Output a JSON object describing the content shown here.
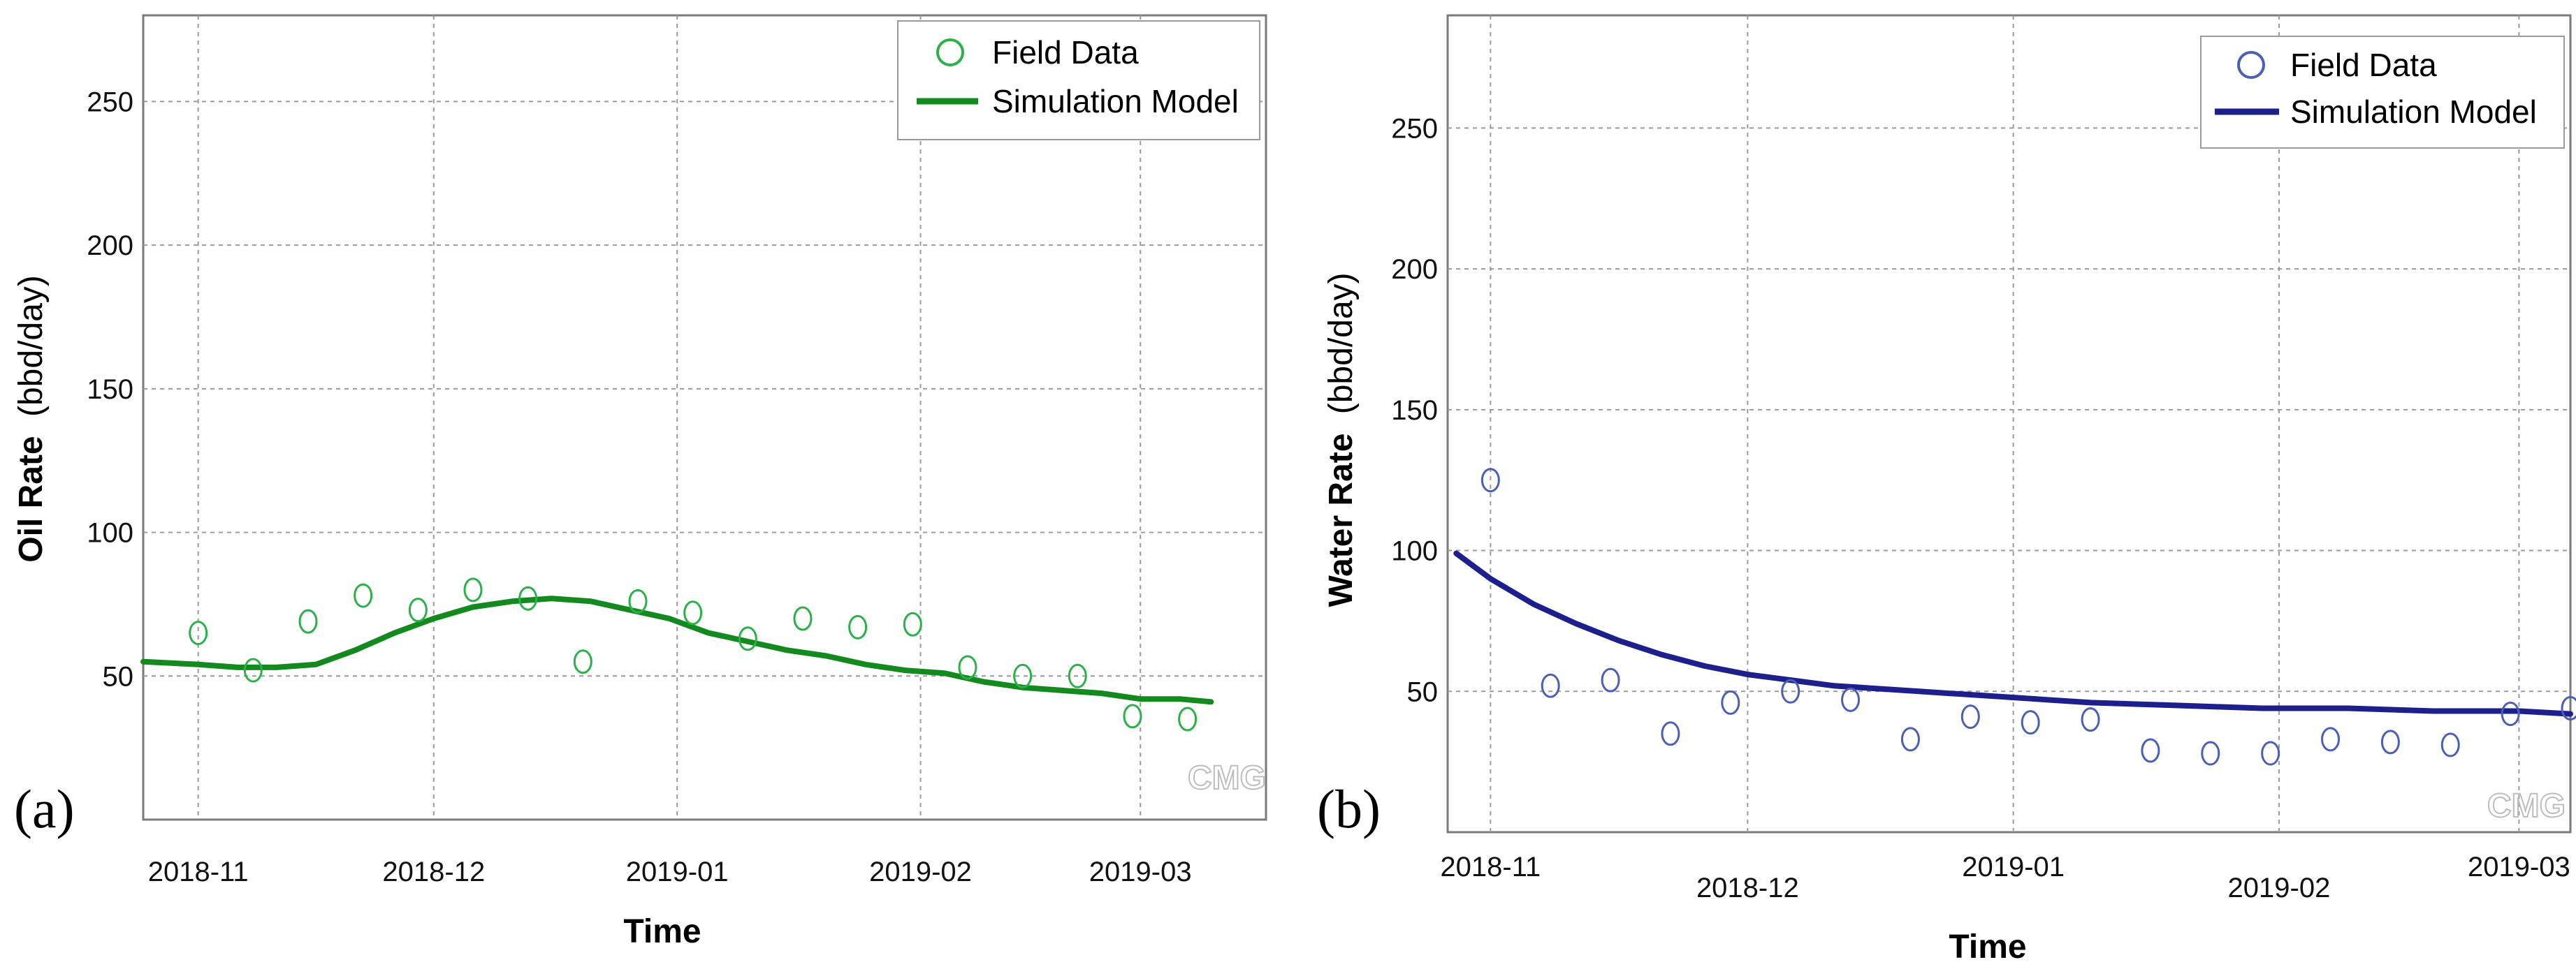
{
  "chart_data": [
    {
      "type": "line",
      "panel_label": "(a)",
      "xlabel": "Time",
      "ylabel": {
        "bold": "Oil Rate",
        "unit": "(bbd/day)"
      },
      "xlim": [
        -7,
        136
      ],
      "ylim": [
        0,
        280
      ],
      "yticks": [
        50,
        100,
        150,
        200,
        250
      ],
      "xticks": [
        {
          "day": 0,
          "label": "2018-11"
        },
        {
          "day": 30,
          "label": "2018-12"
        },
        {
          "day": 61,
          "label": "2019-01"
        },
        {
          "day": 92,
          "label": "2019-02"
        },
        {
          "day": 120,
          "label": "2019-03"
        }
      ],
      "colors": {
        "marker": "#2bb04a",
        "line": "#138a1e"
      },
      "legend": {
        "position": "top-right",
        "entries": [
          "Field Data",
          "Simulation Model"
        ]
      },
      "watermark": "CMG",
      "series": [
        {
          "name": "Field Data",
          "kind": "marker",
          "x": [
            0,
            7,
            14,
            21,
            28,
            35,
            42,
            49,
            56,
            63,
            70,
            77,
            84,
            91,
            98,
            105,
            112,
            119,
            126
          ],
          "y": [
            65,
            52,
            69,
            78,
            73,
            80,
            77,
            55,
            76,
            72,
            63,
            70,
            67,
            68,
            53,
            50,
            50,
            36,
            35
          ]
        },
        {
          "name": "Simulation Model",
          "kind": "line",
          "x": [
            -7,
            0,
            5,
            10,
            15,
            20,
            25,
            30,
            35,
            40,
            45,
            50,
            55,
            60,
            65,
            70,
            75,
            80,
            85,
            90,
            95,
            100,
            105,
            110,
            115,
            120,
            125,
            129
          ],
          "y": [
            55,
            54,
            53,
            53,
            54,
            59,
            65,
            70,
            74,
            76,
            77,
            76,
            73,
            70,
            65,
            62,
            59,
            57,
            54,
            52,
            51,
            48,
            46,
            45,
            44,
            42,
            42,
            41
          ]
        }
      ]
    },
    {
      "type": "line",
      "panel_label": "(b)",
      "xlabel": "Time",
      "ylabel": {
        "bold": "Water Rate",
        "unit": "(bbd/day)"
      },
      "xlim": [
        -5,
        126
      ],
      "ylim": [
        0,
        290
      ],
      "yticks": [
        50,
        100,
        150,
        200,
        250
      ],
      "xticks": [
        {
          "day": 0,
          "label": "2018-11"
        },
        {
          "day": 30,
          "label": "2018-12"
        },
        {
          "day": 61,
          "label": "2019-01"
        },
        {
          "day": 92,
          "label": "2019-02"
        },
        {
          "day": 120,
          "label": "2019-03"
        }
      ],
      "colors": {
        "marker": "#4b5fb8",
        "line": "#1c1f8c"
      },
      "legend": {
        "position": "top-right",
        "entries": [
          "Field Data",
          "Simulation Model"
        ]
      },
      "watermark": "CMG",
      "series": [
        {
          "name": "Field Data",
          "kind": "marker",
          "x": [
            0,
            7,
            14,
            21,
            28,
            35,
            42,
            49,
            56,
            63,
            70,
            77,
            84,
            91,
            98,
            105,
            112,
            119,
            126
          ],
          "y": [
            125,
            52,
            54,
            35,
            46,
            50,
            47,
            33,
            41,
            39,
            40,
            29,
            28,
            28,
            33,
            32,
            31,
            42,
            44
          ]
        },
        {
          "name": "Simulation Model",
          "kind": "line",
          "x": [
            -4,
            0,
            5,
            10,
            15,
            20,
            25,
            30,
            35,
            40,
            45,
            50,
            55,
            60,
            70,
            80,
            90,
            100,
            110,
            120,
            126
          ],
          "y": [
            99,
            90,
            81,
            74,
            68,
            63,
            59,
            56,
            54,
            52,
            51,
            50,
            49,
            48,
            46,
            45,
            44,
            44,
            43,
            43,
            42
          ]
        }
      ]
    }
  ]
}
